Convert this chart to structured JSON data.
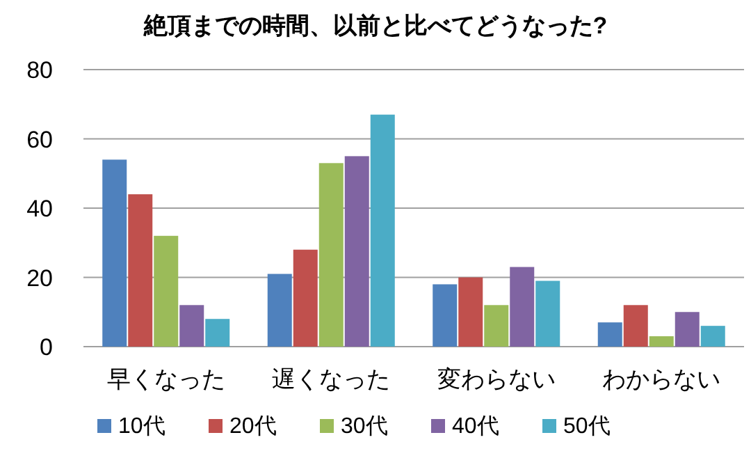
{
  "chart_data": {
    "type": "bar",
    "title": "絶頂までの時間、以前と比べてどうなった?",
    "categories": [
      "早くなった",
      "遅くなった",
      "変わらない",
      "わからない"
    ],
    "series": [
      {
        "name": "10代",
        "color": "#4f81bd",
        "values": [
          54,
          21,
          18,
          7
        ]
      },
      {
        "name": "20代",
        "color": "#c0504d",
        "values": [
          44,
          28,
          20,
          12
        ]
      },
      {
        "name": "30代",
        "color": "#9bbb59",
        "values": [
          32,
          53,
          12,
          3
        ]
      },
      {
        "name": "40代",
        "color": "#8064a2",
        "values": [
          12,
          55,
          23,
          10
        ]
      },
      {
        "name": "50代",
        "color": "#4bacc6",
        "values": [
          8,
          67,
          19,
          6
        ]
      }
    ],
    "ylim": [
      0,
      80
    ],
    "yticks": [
      0,
      20,
      40,
      60,
      80
    ],
    "grid": "y",
    "legend": "bottom"
  }
}
